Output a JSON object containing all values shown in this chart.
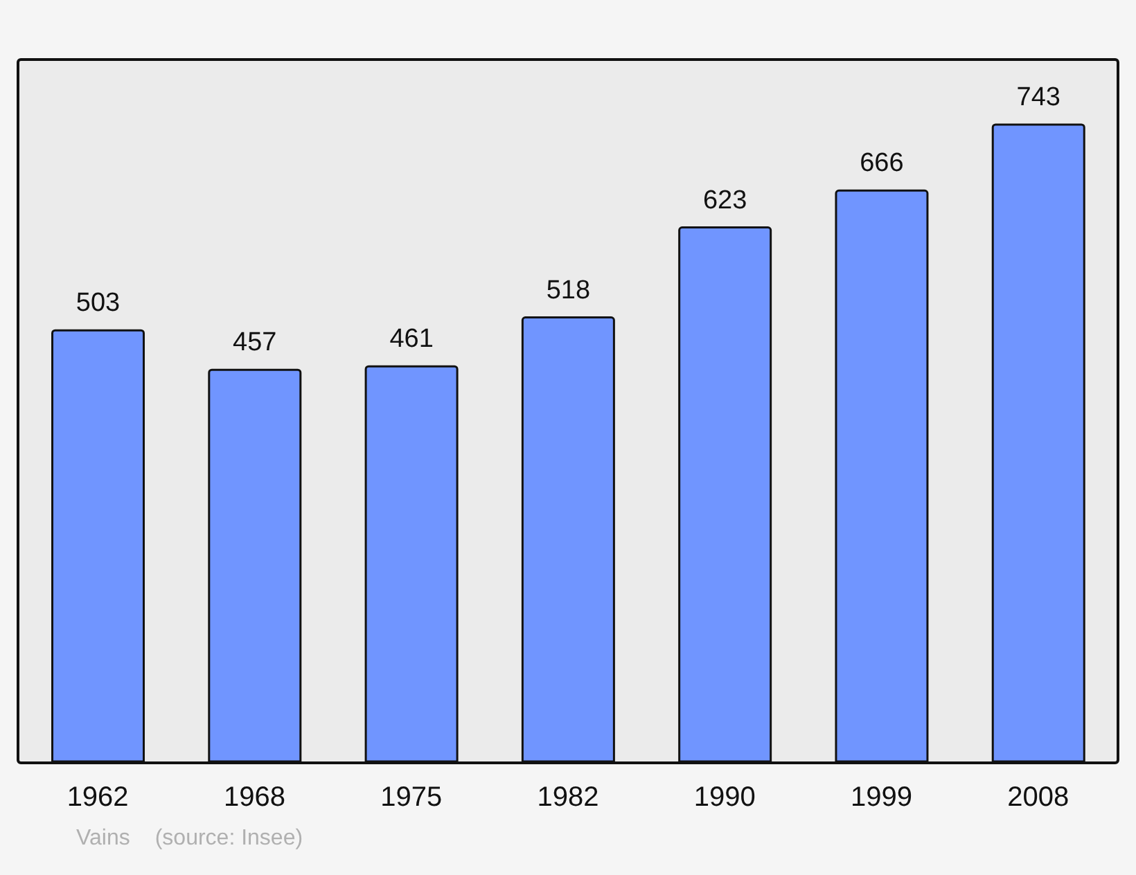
{
  "chart_data": {
    "type": "bar",
    "categories": [
      "1962",
      "1968",
      "1975",
      "1982",
      "1990",
      "1999",
      "2008"
    ],
    "values": [
      503,
      457,
      461,
      518,
      623,
      666,
      743
    ],
    "color": "#7095ff",
    "data_labels": true,
    "annotations": [
      "Vains",
      "(source: Insee)"
    ]
  }
}
